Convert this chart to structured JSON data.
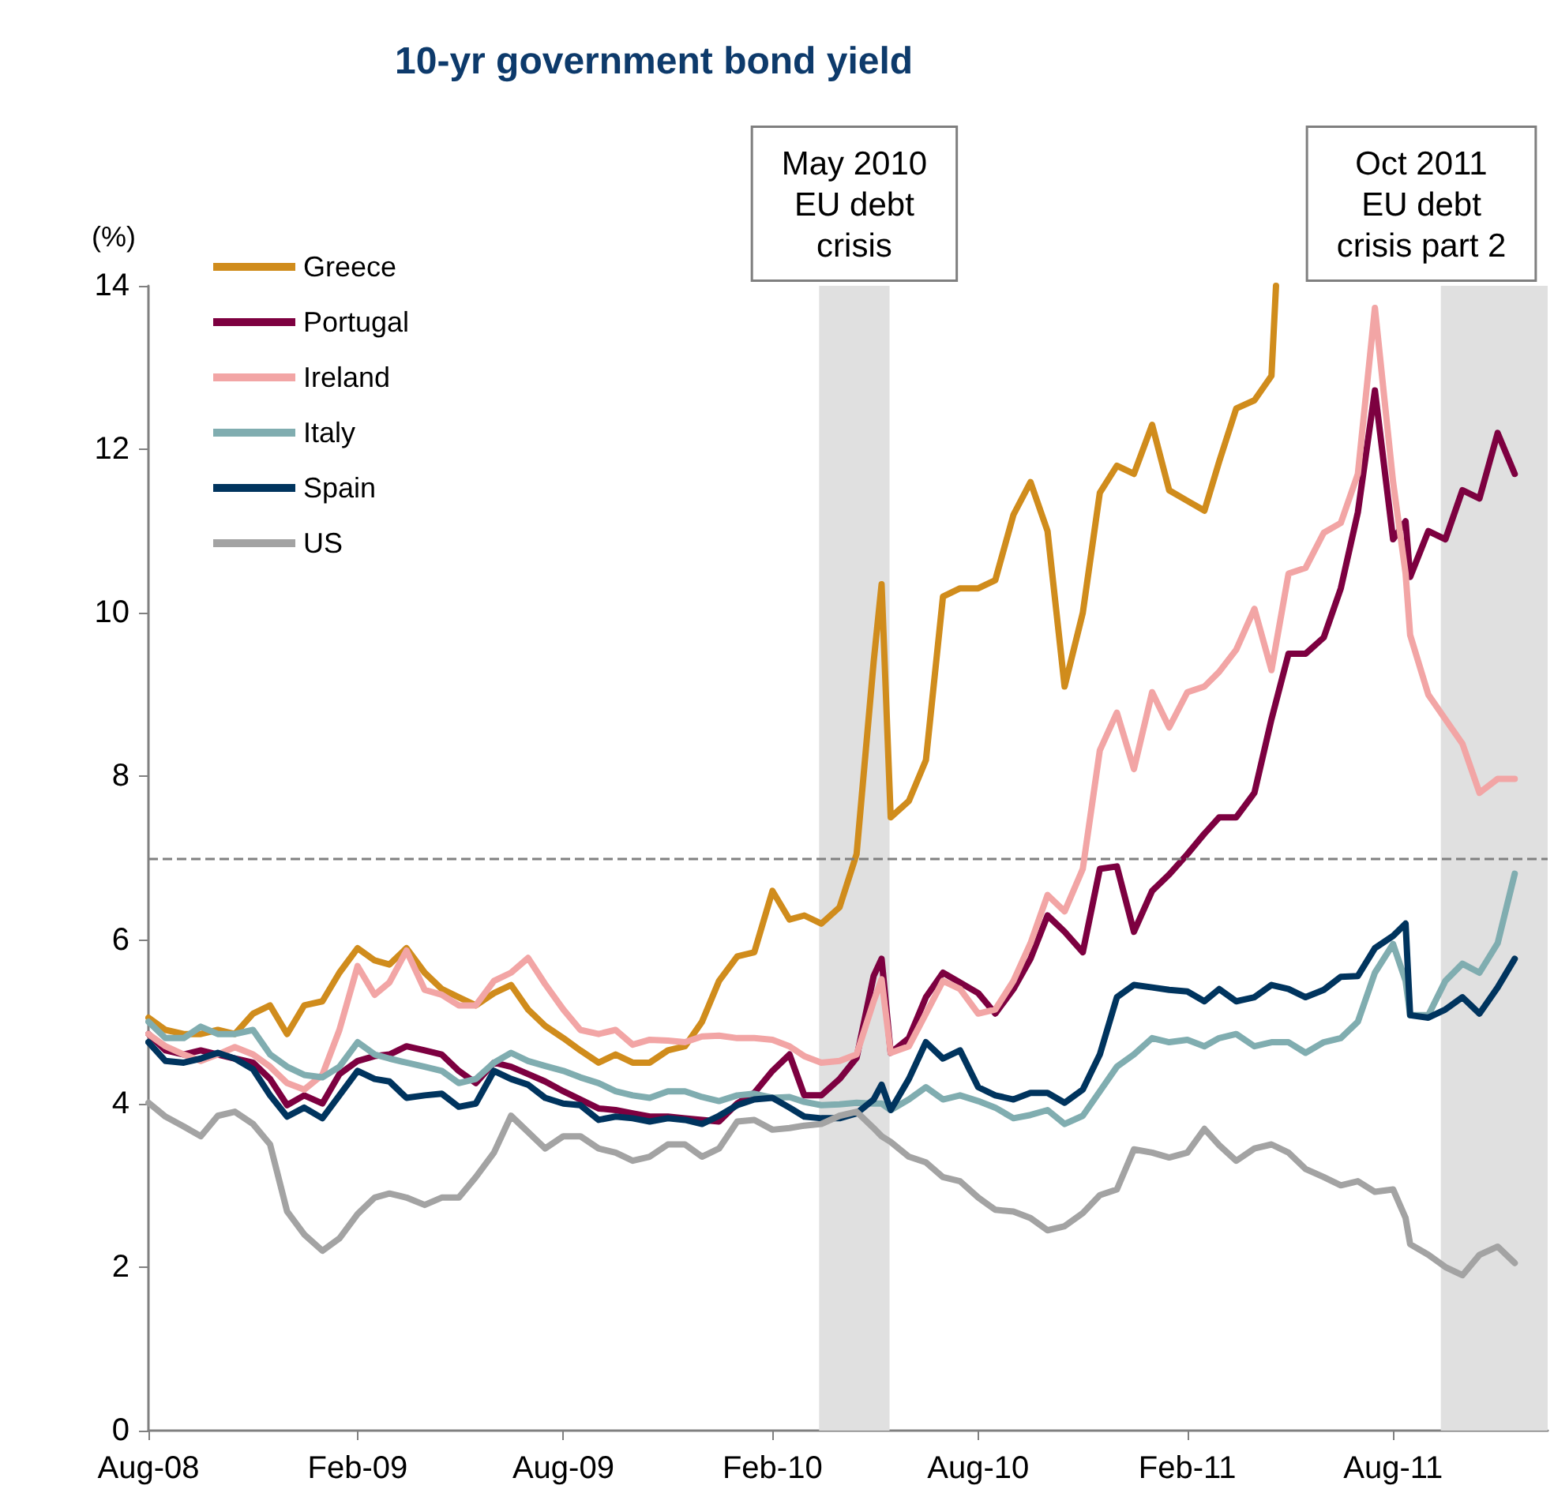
{
  "chart_data": {
    "type": "line",
    "title": "10-yr government bond yield",
    "ylabel": "(%)",
    "x": [
      "2008-08-01",
      "2008-08-16",
      "2008-09-01",
      "2008-09-16",
      "2008-10-01",
      "2008-10-16",
      "2008-11-01",
      "2008-11-16",
      "2008-12-01",
      "2008-12-16",
      "2009-01-01",
      "2009-01-16",
      "2009-02-01",
      "2009-02-16",
      "2009-03-01",
      "2009-03-16",
      "2009-04-01",
      "2009-04-16",
      "2009-05-01",
      "2009-05-16",
      "2009-06-01",
      "2009-06-16",
      "2009-07-01",
      "2009-07-16",
      "2009-08-01",
      "2009-08-16",
      "2009-09-01",
      "2009-09-16",
      "2009-10-01",
      "2009-10-16",
      "2009-11-01",
      "2009-11-16",
      "2009-12-01",
      "2009-12-16",
      "2010-01-01",
      "2010-01-16",
      "2010-02-01",
      "2010-02-16",
      "2010-03-01",
      "2010-03-16",
      "2010-04-01",
      "2010-04-16",
      "2010-05-01",
      "2010-05-08",
      "2010-05-16",
      "2010-06-01",
      "2010-06-16",
      "2010-07-01",
      "2010-07-16",
      "2010-08-01",
      "2010-08-16",
      "2010-09-01",
      "2010-09-16",
      "2010-10-01",
      "2010-10-16",
      "2010-11-01",
      "2010-11-16",
      "2010-12-01",
      "2010-12-16",
      "2011-01-01",
      "2011-01-16",
      "2011-02-01",
      "2011-02-16",
      "2011-03-01",
      "2011-03-16",
      "2011-04-01",
      "2011-04-16",
      "2011-05-01",
      "2011-05-16",
      "2011-06-01",
      "2011-06-16",
      "2011-07-01",
      "2011-07-16",
      "2011-08-01",
      "2011-08-12",
      "2011-08-16",
      "2011-09-01",
      "2011-09-16",
      "2011-10-01",
      "2011-10-16",
      "2011-11-01",
      "2011-11-16"
    ],
    "series": [
      {
        "name": "Greece",
        "color": "#d08c1c",
        "x": [
          "2008-08-01",
          "2008-08-16",
          "2008-09-01",
          "2008-09-16",
          "2008-10-01",
          "2008-10-16",
          "2008-11-01",
          "2008-11-16",
          "2008-12-01",
          "2008-12-16",
          "2009-01-01",
          "2009-01-16",
          "2009-02-01",
          "2009-02-16",
          "2009-03-01",
          "2009-03-16",
          "2009-04-01",
          "2009-04-16",
          "2009-05-01",
          "2009-05-16",
          "2009-06-01",
          "2009-06-16",
          "2009-07-01",
          "2009-07-16",
          "2009-08-01",
          "2009-08-16",
          "2009-09-01",
          "2009-09-16",
          "2009-10-01",
          "2009-10-16",
          "2009-11-01",
          "2009-11-16",
          "2009-12-01",
          "2009-12-16",
          "2010-01-01",
          "2010-01-16",
          "2010-02-01",
          "2010-02-16",
          "2010-03-01",
          "2010-03-16",
          "2010-04-01",
          "2010-04-16",
          "2010-05-01",
          "2010-05-08",
          "2010-05-16",
          "2010-06-01",
          "2010-06-16",
          "2010-07-01",
          "2010-07-16",
          "2010-08-01",
          "2010-08-16",
          "2010-09-01",
          "2010-09-16",
          "2010-10-01",
          "2010-10-16",
          "2010-11-01",
          "2010-11-16",
          "2010-12-01",
          "2010-12-16",
          "2011-01-01",
          "2011-01-16",
          "2011-02-01",
          "2011-02-16",
          "2011-03-01",
          "2011-03-16",
          "2011-04-01",
          "2011-04-16",
          "2011-04-20"
        ],
        "values": [
          5.05,
          4.9,
          4.85,
          4.85,
          4.9,
          4.85,
          5.1,
          5.2,
          4.85,
          5.2,
          5.25,
          5.6,
          5.9,
          5.75,
          5.7,
          5.9,
          5.6,
          5.4,
          5.3,
          5.2,
          5.35,
          5.45,
          5.15,
          4.95,
          4.8,
          4.65,
          4.5,
          4.6,
          4.5,
          4.5,
          4.65,
          4.7,
          5.0,
          5.5,
          5.8,
          5.85,
          6.6,
          6.25,
          6.3,
          6.2,
          6.4,
          7.05,
          9.4,
          10.35,
          7.5,
          7.7,
          8.2,
          10.2,
          10.3,
          10.3,
          10.4,
          11.2,
          11.6,
          11.0,
          9.1,
          10.0,
          11.47,
          11.8,
          11.7,
          12.3,
          11.5,
          11.37,
          11.25,
          11.85,
          12.5,
          12.6,
          12.9,
          14
        ]
      },
      {
        "name": "Portugal",
        "color": "#7d0040",
        "values": [
          4.85,
          4.65,
          4.6,
          4.65,
          4.6,
          4.55,
          4.5,
          4.3,
          3.98,
          4.1,
          4.0,
          4.36,
          4.52,
          4.58,
          4.6,
          4.7,
          4.65,
          4.6,
          4.4,
          4.25,
          4.5,
          4.45,
          4.36,
          4.27,
          4.15,
          4.05,
          3.94,
          3.92,
          3.88,
          3.84,
          3.84,
          3.82,
          3.8,
          3.78,
          4.0,
          4.13,
          4.4,
          4.6,
          4.1,
          4.1,
          4.3,
          4.56,
          5.56,
          5.77,
          4.62,
          4.8,
          5.3,
          5.6,
          5.48,
          5.35,
          5.1,
          5.4,
          5.77,
          6.3,
          6.1,
          5.85,
          6.87,
          6.9,
          6.1,
          6.6,
          6.8,
          7.05,
          7.3,
          7.5,
          7.5,
          7.8,
          8.7,
          9.5,
          9.5,
          9.7,
          10.3,
          11.23,
          12.72,
          10.9,
          11.12,
          10.44,
          11.0,
          10.9,
          11.5,
          11.4,
          12.2,
          11.7
        ]
      },
      {
        "name": "Ireland",
        "color": "#f2a5a5",
        "values": [
          4.85,
          4.7,
          4.6,
          4.52,
          4.6,
          4.69,
          4.6,
          4.45,
          4.25,
          4.17,
          4.35,
          4.9,
          5.68,
          5.33,
          5.48,
          5.87,
          5.39,
          5.33,
          5.2,
          5.2,
          5.5,
          5.6,
          5.78,
          5.46,
          5.15,
          4.9,
          4.85,
          4.9,
          4.72,
          4.78,
          4.77,
          4.75,
          4.82,
          4.83,
          4.8,
          4.8,
          4.78,
          4.7,
          4.58,
          4.5,
          4.52,
          4.6,
          5.25,
          5.52,
          4.62,
          4.7,
          5.1,
          5.5,
          5.4,
          5.1,
          5.15,
          5.5,
          5.96,
          6.55,
          6.35,
          6.87,
          8.32,
          8.78,
          8.09,
          9.03,
          8.6,
          9.03,
          9.1,
          9.28,
          9.55,
          10.05,
          9.3,
          10.48,
          10.55,
          10.98,
          11.1,
          11.7,
          13.73,
          11.6,
          10.48,
          9.73,
          9.0,
          8.7,
          8.4,
          7.8,
          7.97,
          7.97
        ]
      },
      {
        "name": "Italy",
        "color": "#80adb0",
        "values": [
          5.0,
          4.8,
          4.8,
          4.94,
          4.85,
          4.85,
          4.9,
          4.6,
          4.45,
          4.35,
          4.32,
          4.45,
          4.75,
          4.6,
          4.55,
          4.5,
          4.45,
          4.4,
          4.25,
          4.3,
          4.5,
          4.62,
          4.52,
          4.46,
          4.4,
          4.32,
          4.25,
          4.15,
          4.1,
          4.07,
          4.15,
          4.15,
          4.08,
          4.03,
          4.1,
          4.12,
          4.07,
          4.08,
          4.02,
          3.98,
          3.99,
          4.01,
          4.0,
          4.0,
          3.92,
          4.05,
          4.2,
          4.05,
          4.1,
          4.03,
          3.95,
          3.82,
          3.86,
          3.92,
          3.75,
          3.85,
          4.15,
          4.45,
          4.6,
          4.8,
          4.75,
          4.78,
          4.7,
          4.8,
          4.85,
          4.7,
          4.75,
          4.75,
          4.62,
          4.75,
          4.8,
          5.0,
          5.6,
          5.95,
          5.5,
          5.08,
          5.08,
          5.5,
          5.71,
          5.6,
          5.96,
          6.81
        ]
      },
      {
        "name": "Spain",
        "color": "#00345e",
        "values": [
          4.75,
          4.52,
          4.5,
          4.55,
          4.62,
          4.55,
          4.42,
          4.1,
          3.84,
          3.95,
          3.82,
          4.1,
          4.4,
          4.3,
          4.27,
          4.07,
          4.1,
          4.12,
          3.96,
          4.0,
          4.4,
          4.3,
          4.23,
          4.07,
          4.0,
          3.98,
          3.8,
          3.84,
          3.82,
          3.78,
          3.82,
          3.8,
          3.75,
          3.85,
          3.98,
          4.05,
          4.07,
          3.95,
          3.84,
          3.82,
          3.82,
          3.88,
          4.05,
          4.23,
          3.92,
          4.3,
          4.75,
          4.55,
          4.65,
          4.2,
          4.1,
          4.05,
          4.13,
          4.13,
          4.01,
          4.17,
          4.6,
          5.3,
          5.45,
          5.42,
          5.39,
          5.37,
          5.25,
          5.4,
          5.25,
          5.3,
          5.45,
          5.4,
          5.3,
          5.39,
          5.55,
          5.56,
          5.9,
          6.05,
          6.2,
          5.08,
          5.05,
          5.15,
          5.3,
          5.1,
          5.42,
          5.77
        ]
      },
      {
        "name": "US",
        "color": "#a3a3a3",
        "values": [
          4.01,
          3.84,
          3.72,
          3.6,
          3.85,
          3.9,
          3.75,
          3.5,
          2.68,
          2.4,
          2.2,
          2.35,
          2.65,
          2.85,
          2.9,
          2.85,
          2.76,
          2.85,
          2.85,
          3.1,
          3.4,
          3.85,
          3.65,
          3.45,
          3.6,
          3.6,
          3.45,
          3.4,
          3.3,
          3.35,
          3.5,
          3.5,
          3.35,
          3.45,
          3.78,
          3.8,
          3.68,
          3.7,
          3.73,
          3.75,
          3.85,
          3.9,
          3.7,
          3.6,
          3.53,
          3.35,
          3.28,
          3.1,
          3.05,
          2.85,
          2.7,
          2.68,
          2.6,
          2.45,
          2.5,
          2.66,
          2.88,
          2.95,
          3.44,
          3.4,
          3.34,
          3.4,
          3.69,
          3.49,
          3.3,
          3.45,
          3.5,
          3.4,
          3.2,
          3.1,
          3.0,
          3.05,
          2.92,
          2.95,
          2.6,
          2.28,
          2.15,
          2.0,
          1.9,
          2.15,
          2.25,
          2.05
        ]
      }
    ],
    "xlim": [
      "2008-08-01",
      "2011-12-15"
    ],
    "xticks": [
      {
        "value": "2008-08",
        "label": "Aug-08"
      },
      {
        "value": "2009-02",
        "label": "Feb-09"
      },
      {
        "value": "2009-08",
        "label": "Aug-09"
      },
      {
        "value": "2010-02",
        "label": "Feb-10"
      },
      {
        "value": "2010-08",
        "label": "Aug-10"
      },
      {
        "value": "2011-02",
        "label": "Feb-11"
      },
      {
        "value": "2011-08",
        "label": "Aug-11"
      }
    ],
    "ylim": [
      0,
      14
    ],
    "yticks": [
      0,
      2,
      4,
      6,
      8,
      10,
      12,
      14
    ],
    "ref_lines": [
      {
        "axis": "y",
        "value": 7,
        "color": "#808080",
        "line_style": "dashed"
      }
    ],
    "bands": [
      {
        "axis": "x",
        "from": "2010-03-14",
        "to": "2010-05-15",
        "label": "May 2010\nEU debt\ncrisis",
        "color": "#e0e0e0"
      },
      {
        "axis": "x",
        "from": "2011-09-12",
        "to": "2011-12-15",
        "label": "Oct 2011\nEU debt\ncrisis part 2",
        "color": "#e0e0e0"
      }
    ],
    "legend": "top left",
    "line_style": "solid"
  }
}
